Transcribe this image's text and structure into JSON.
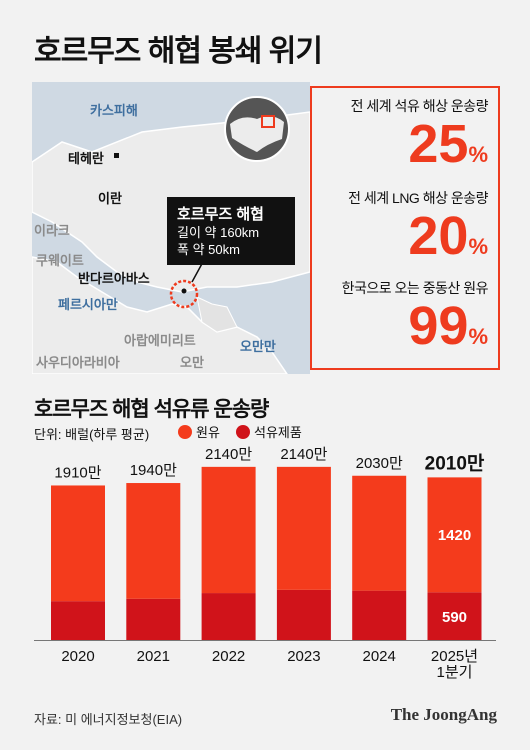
{
  "title": "호르무즈 해협 봉쇄 위기",
  "map": {
    "labels": {
      "caspian": "카스피해",
      "tehran": "테헤란",
      "iran": "이란",
      "iraq": "이라크",
      "kuwait": "쿠웨이트",
      "bandar": "반다르아바스",
      "persian_gulf": "페르시아만",
      "uae": "아랍에미리트",
      "saudi": "사우디아라비아",
      "oman": "오만",
      "gulf_of_oman": "오만만"
    },
    "callout": {
      "title": "호르무즈 해협",
      "length": "길이 약 160km",
      "width": "폭 약 50km"
    },
    "colors": {
      "sea": "#cfd9e3",
      "land": "#ececec",
      "highlight": "#ee3b1e"
    }
  },
  "stats": [
    {
      "label": "전 세계 석유 해상 운송량",
      "value": "25",
      "unit": "%"
    },
    {
      "label": "전 세계 LNG 해상 운송량",
      "value": "20",
      "unit": "%"
    },
    {
      "label": "한국으로 오는 중동산 원유",
      "value": "99",
      "unit": "%"
    }
  ],
  "subtitle": "호르무즈 해협 석유류 운송량",
  "unit_label": "단위: 배럴(하루 평균)",
  "legend": {
    "crude": "원유",
    "product": "석유제품"
  },
  "colors": {
    "crude": "#f43b1c",
    "product": "#d0131a",
    "accent": "#ee3b1e"
  },
  "chart_data": {
    "type": "bar",
    "stacked": true,
    "categories": [
      "2020",
      "2021",
      "2022",
      "2023",
      "2024",
      "2025년\n1분기"
    ],
    "totals_label": [
      "1910만",
      "1940만",
      "2140만",
      "2140만",
      "2030만",
      "2010만"
    ],
    "totals": [
      1910,
      1940,
      2140,
      2140,
      2030,
      2010
    ],
    "series": [
      {
        "name": "원유",
        "values": [
          1430,
          1430,
          1560,
          1520,
          1420,
          1420
        ]
      },
      {
        "name": "석유제품",
        "values": [
          480,
          510,
          580,
          620,
          610,
          590
        ]
      }
    ],
    "data_labels": {
      "crude_last": "1420",
      "product_last": "590"
    },
    "ylim": [
      0,
      2200
    ],
    "grid": false,
    "legend_placement": "top-left"
  },
  "source": "자료: 미 에너지정보청(EIA)",
  "brand": "The JoongAng"
}
